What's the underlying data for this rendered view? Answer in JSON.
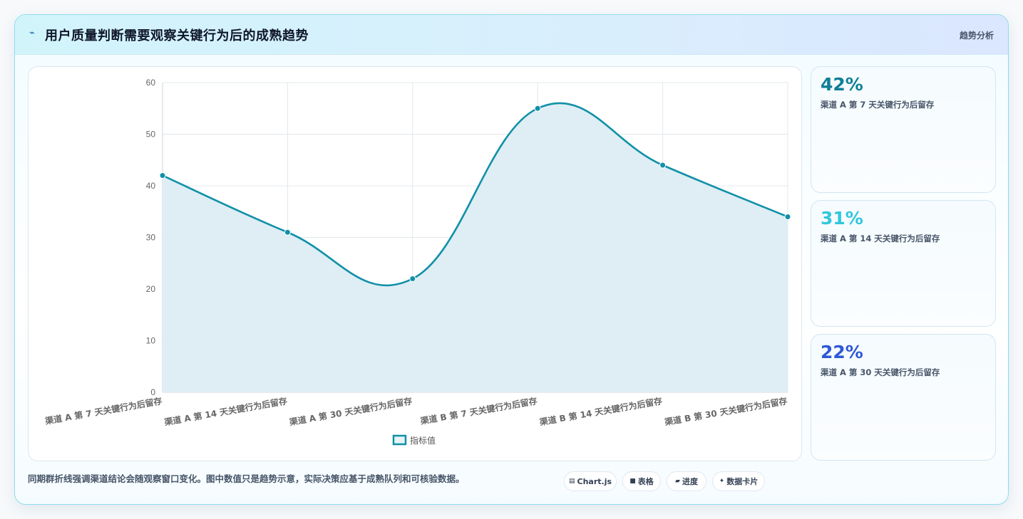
{
  "header": {
    "icon": "lightning-icon",
    "title": "用户质量判断需要观察关键行为后的成熟趋势",
    "tag": "趋势分析"
  },
  "chart_data": {
    "type": "line",
    "categories": [
      "渠道 A 第 7 天关键行为后留存",
      "渠道 A 第 14 天关键行为后留存",
      "渠道 A 第 30 天关键行为后留存",
      "渠道 B 第 7 天关键行为后留存",
      "渠道 B 第 14 天关键行为后留存",
      "渠道 B 第 30 天关键行为后留存"
    ],
    "series": [
      {
        "name": "指标值",
        "values": [
          42,
          31,
          22,
          55,
          44,
          34
        ]
      }
    ],
    "ylim": [
      0,
      60
    ],
    "yticks": [
      0,
      10,
      20,
      30,
      40,
      50,
      60
    ],
    "grid": true,
    "legend": "bottom",
    "fill": true,
    "colors": {
      "line": "#1190a8",
      "fill": "#dcedf3"
    }
  },
  "side_cards": [
    {
      "value": "42%",
      "label": "渠道 A 第 7 天关键行为后留存",
      "color": "#0e7f96"
    },
    {
      "value": "31%",
      "label": "渠道 A 第 14 天关键行为后留存",
      "color": "#30c7dd"
    },
    {
      "value": "22%",
      "label": "渠道 A 第 30 天关键行为后留存",
      "color": "#2f58d8"
    }
  ],
  "footer": {
    "note": "同期群折线强调渠道结论会随观察窗口变化。图中数值只是趋势示意，实际决策应基于成熟队列和可核验数据。",
    "pills": [
      {
        "icon": "chart-icon",
        "glyph": "▤",
        "label": "Chart.js"
      },
      {
        "icon": "table-icon",
        "glyph": "■",
        "label": "表格"
      },
      {
        "icon": "progress-icon",
        "glyph": "▰",
        "label": "进度"
      },
      {
        "icon": "sparkle-icon",
        "glyph": "✦",
        "label": "数据卡片"
      }
    ]
  }
}
